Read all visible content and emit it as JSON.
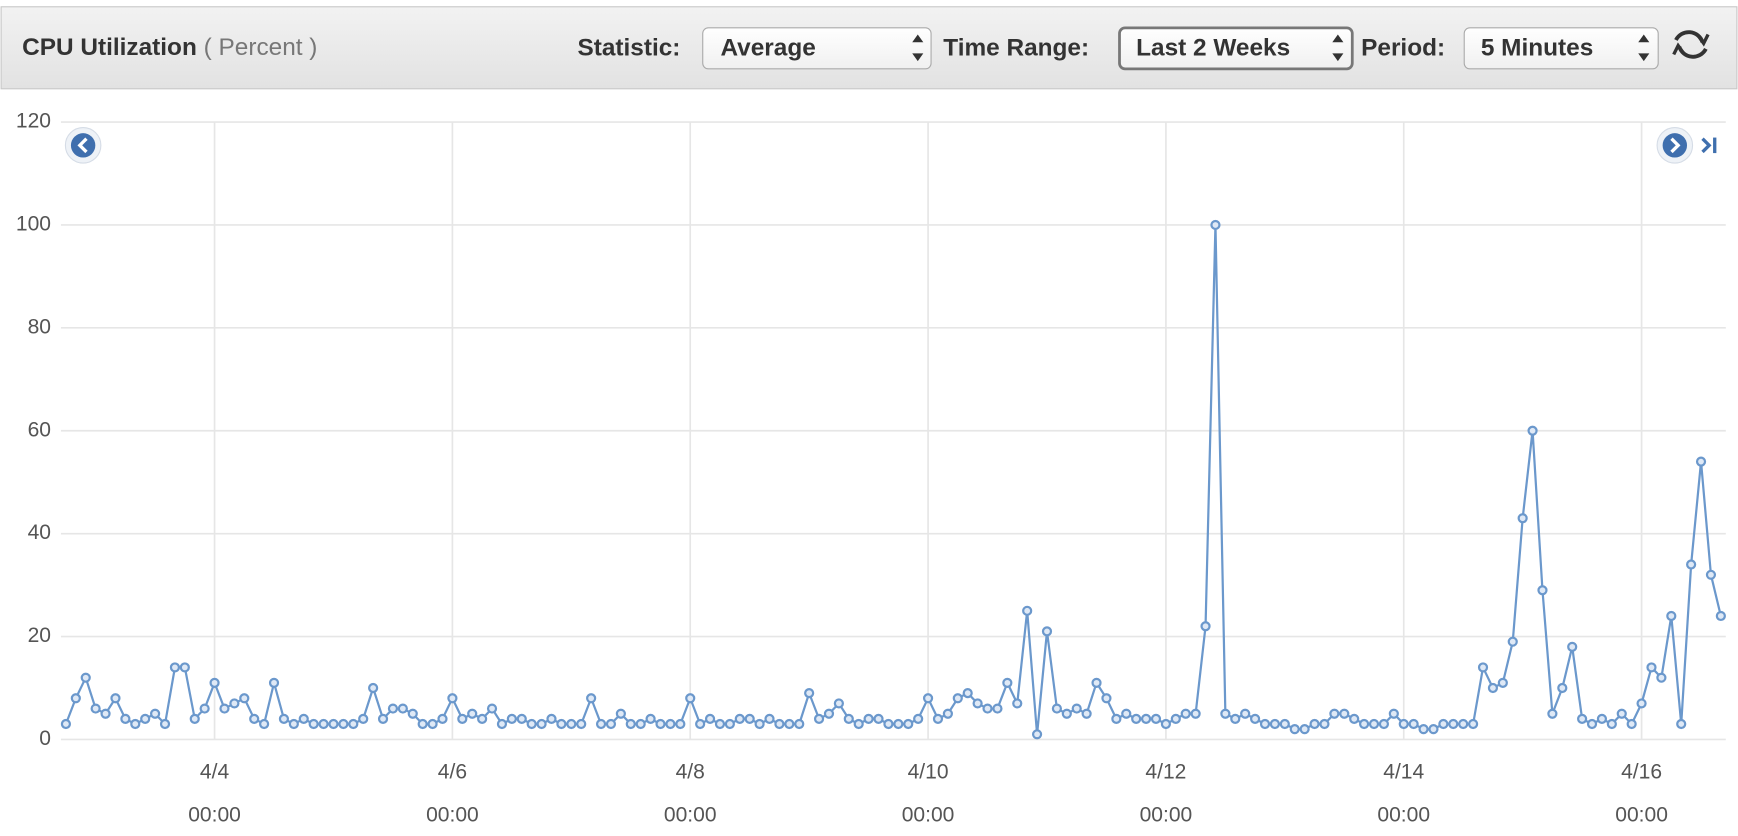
{
  "toolbar": {
    "title": "CPU Utilization",
    "unit": "( Percent )",
    "statistic_label": "Statistic:",
    "statistic": "Average",
    "time_range_label": "Time Range:",
    "time_range": "Last 2 Weeks",
    "period_label": "Period:",
    "period": "5 Minutes"
  },
  "chart_data": {
    "type": "line",
    "x": [
      "4/2 18:00",
      "4/2 20:00",
      "4/2 22:00",
      "4/3 00:00",
      "4/3 02:00",
      "4/3 04:00",
      "4/3 06:00",
      "4/3 08:00",
      "4/3 10:00",
      "4/3 12:00",
      "4/3 14:00",
      "4/3 16:00",
      "4/3 18:00",
      "4/3 20:00",
      "4/3 22:00",
      "4/4 00:00",
      "4/4 02:00",
      "4/4 04:00",
      "4/4 06:00",
      "4/4 08:00",
      "4/4 10:00",
      "4/4 12:00",
      "4/4 14:00",
      "4/4 16:00",
      "4/4 18:00",
      "4/4 20:00",
      "4/4 22:00",
      "4/5 00:00",
      "4/5 02:00",
      "4/5 04:00",
      "4/5 06:00",
      "4/5 08:00",
      "4/5 10:00",
      "4/5 12:00",
      "4/5 14:00",
      "4/5 16:00",
      "4/5 18:00",
      "4/5 20:00",
      "4/5 22:00",
      "4/6 00:00",
      "4/6 02:00",
      "4/6 04:00",
      "4/6 06:00",
      "4/6 08:00",
      "4/6 10:00",
      "4/6 12:00",
      "4/6 14:00",
      "4/6 16:00",
      "4/6 18:00",
      "4/6 20:00",
      "4/6 22:00",
      "4/7 00:00",
      "4/7 02:00",
      "4/7 04:00",
      "4/7 06:00",
      "4/7 08:00",
      "4/7 10:00",
      "4/7 12:00",
      "4/7 14:00",
      "4/7 16:00",
      "4/7 18:00",
      "4/7 20:00",
      "4/7 22:00",
      "4/8 00:00",
      "4/8 02:00",
      "4/8 04:00",
      "4/8 06:00",
      "4/8 08:00",
      "4/8 10:00",
      "4/8 12:00",
      "4/8 14:00",
      "4/8 16:00",
      "4/8 18:00",
      "4/8 20:00",
      "4/8 22:00",
      "4/9 00:00",
      "4/9 02:00",
      "4/9 04:00",
      "4/9 06:00",
      "4/9 08:00",
      "4/9 10:00",
      "4/9 12:00",
      "4/9 14:00",
      "4/9 16:00",
      "4/9 18:00",
      "4/9 20:00",
      "4/9 22:00",
      "4/10 00:00",
      "4/10 02:00",
      "4/10 04:00",
      "4/10 06:00",
      "4/10 08:00",
      "4/10 10:00",
      "4/10 12:00",
      "4/10 14:00",
      "4/10 16:00",
      "4/10 18:00",
      "4/10 20:00",
      "4/10 22:00",
      "4/11 00:00",
      "4/11 02:00",
      "4/11 04:00",
      "4/11 06:00",
      "4/11 08:00",
      "4/11 10:00",
      "4/11 12:00",
      "4/11 14:00",
      "4/11 16:00",
      "4/11 18:00",
      "4/11 20:00",
      "4/11 22:00",
      "4/12 00:00",
      "4/12 02:00",
      "4/12 04:00",
      "4/12 06:00",
      "4/12 08:00",
      "4/12 10:00",
      "4/12 12:00",
      "4/12 14:00",
      "4/12 16:00",
      "4/12 18:00",
      "4/12 20:00",
      "4/12 22:00",
      "4/13 00:00",
      "4/13 02:00",
      "4/13 04:00",
      "4/13 06:00",
      "4/13 08:00",
      "4/13 10:00",
      "4/13 12:00",
      "4/13 14:00",
      "4/13 16:00",
      "4/13 18:00",
      "4/13 20:00",
      "4/13 22:00",
      "4/14 00:00",
      "4/14 02:00",
      "4/14 04:00",
      "4/14 06:00",
      "4/14 08:00",
      "4/14 10:00",
      "4/14 12:00",
      "4/14 14:00",
      "4/14 16:00",
      "4/14 18:00",
      "4/14 20:00",
      "4/14 22:00",
      "4/15 00:00",
      "4/15 02:00",
      "4/15 04:00",
      "4/15 06:00",
      "4/15 08:00",
      "4/15 10:00",
      "4/15 12:00",
      "4/15 14:00",
      "4/15 16:00",
      "4/15 18:00",
      "4/15 20:00",
      "4/15 22:00",
      "4/16 00:00",
      "4/16 02:00",
      "4/16 04:00",
      "4/16 06:00",
      "4/16 08:00",
      "4/16 10:00",
      "4/16 12:00",
      "4/16 14:00",
      "4/16 16:00"
    ],
    "series": [
      {
        "color": "#6b98cc",
        "values": [
          3,
          8,
          12,
          6,
          5,
          8,
          4,
          3,
          4,
          5,
          3,
          14,
          14,
          4,
          6,
          11,
          6,
          7,
          8,
          4,
          3,
          11,
          4,
          3,
          4,
          3,
          3,
          3,
          3,
          3,
          4,
          10,
          4,
          6,
          6,
          5,
          3,
          3,
          4,
          8,
          4,
          5,
          4,
          6,
          3,
          4,
          4,
          3,
          3,
          4,
          3,
          3,
          3,
          8,
          3,
          3,
          5,
          3,
          3,
          4,
          3,
          3,
          3,
          8,
          3,
          4,
          3,
          3,
          4,
          4,
          3,
          4,
          3,
          3,
          3,
          9,
          4,
          5,
          7,
          4,
          3,
          4,
          4,
          3,
          3,
          3,
          4,
          8,
          4,
          5,
          8,
          9,
          7,
          6,
          6,
          11,
          7,
          25,
          1,
          21,
          6,
          5,
          6,
          5,
          11,
          8,
          4,
          5,
          4,
          4,
          4,
          3,
          4,
          5,
          5,
          22,
          100,
          5,
          4,
          5,
          4,
          3,
          3,
          3,
          2,
          2,
          3,
          3,
          5,
          5,
          4,
          3,
          3,
          3,
          5,
          3,
          3,
          2,
          2,
          3,
          3,
          3,
          3,
          14,
          10,
          11,
          19,
          43,
          60,
          29,
          5,
          10,
          18,
          4,
          3,
          4,
          3,
          5,
          3,
          7,
          14,
          12,
          24,
          3,
          34,
          54,
          32,
          24
        ]
      }
    ],
    "xlim": [
      "4/2 17:00",
      "4/16 17:00"
    ],
    "xticks": [
      {
        "value": "4/4 00:00",
        "label": [
          "4/4",
          "00:00"
        ]
      },
      {
        "value": "4/6 00:00",
        "label": [
          "4/6",
          "00:00"
        ]
      },
      {
        "value": "4/8 00:00",
        "label": [
          "4/8",
          "00:00"
        ]
      },
      {
        "value": "4/10 00:00",
        "label": [
          "4/10",
          "00:00"
        ]
      },
      {
        "value": "4/12 00:00",
        "label": [
          "4/12",
          "00:00"
        ]
      },
      {
        "value": "4/14 00:00",
        "label": [
          "4/14",
          "00:00"
        ]
      },
      {
        "value": "4/16 00:00",
        "label": [
          "4/16",
          "00:00"
        ]
      }
    ],
    "ylim": [
      0,
      120
    ],
    "yticks": [
      0,
      20,
      40,
      60,
      80,
      100,
      120
    ],
    "grid": true
  }
}
